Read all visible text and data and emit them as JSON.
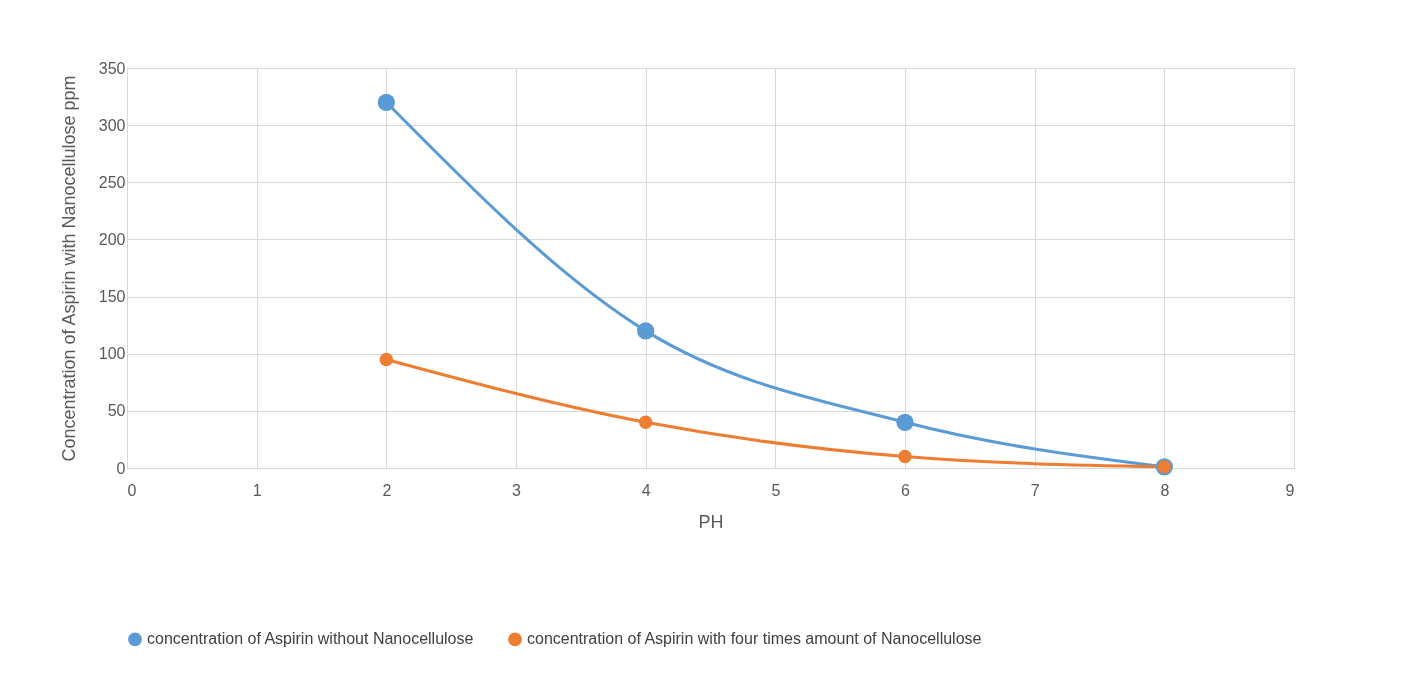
{
  "chart_data": {
    "type": "line",
    "xlabel": "PH",
    "ylabel": "Concentration of Aspirin  with Nanocellulose ppm",
    "x": [
      2,
      4,
      6,
      8
    ],
    "series": [
      {
        "name": "concentration of Aspirin without Nanocellulose",
        "color": "#5b9bd5",
        "values": [
          320,
          120,
          40,
          1
        ]
      },
      {
        "name": "concentration of Aspirin with four times amount of  Nanocellulose",
        "color": "#ed7d31",
        "values": [
          95,
          40,
          10,
          1
        ]
      }
    ],
    "xlim": [
      0,
      9
    ],
    "xticks": [
      0,
      1,
      2,
      3,
      4,
      5,
      6,
      7,
      8,
      9
    ],
    "ylim": [
      0,
      350
    ],
    "yticks": [
      0,
      50,
      100,
      150,
      200,
      250,
      300,
      350
    ],
    "grid": true,
    "legend": "bottom",
    "marker": "circle",
    "line_style": "solid"
  }
}
